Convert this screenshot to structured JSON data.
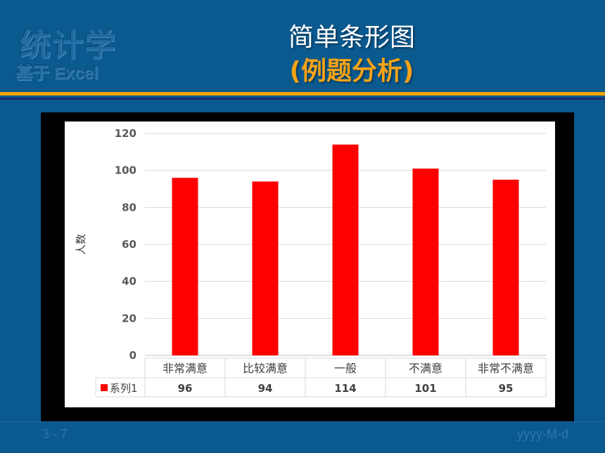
{
  "header": {
    "logo_main": "统计学",
    "logo_sub": "基于 Excel",
    "title": "简单条形图",
    "subtitle": "(例题分析)"
  },
  "footer": {
    "page": "3 - 7",
    "date": "yyyy-M-d"
  },
  "colors": {
    "background": "#0b5a8f",
    "accent": "#f6a316",
    "bar": "#ff0000"
  },
  "chart_data": {
    "type": "bar",
    "categories": [
      "非常满意",
      "比较满意",
      "一般",
      "不满意",
      "非常不满意"
    ],
    "series": [
      {
        "name": "系列1",
        "values": [
          96,
          94,
          114,
          101,
          95
        ]
      }
    ],
    "ylabel": "人数",
    "xlabel": "",
    "ylim": [
      0,
      120
    ],
    "yticks": [
      0,
      20,
      40,
      60,
      80,
      100,
      120
    ],
    "grid": true,
    "legend": "data-table"
  }
}
